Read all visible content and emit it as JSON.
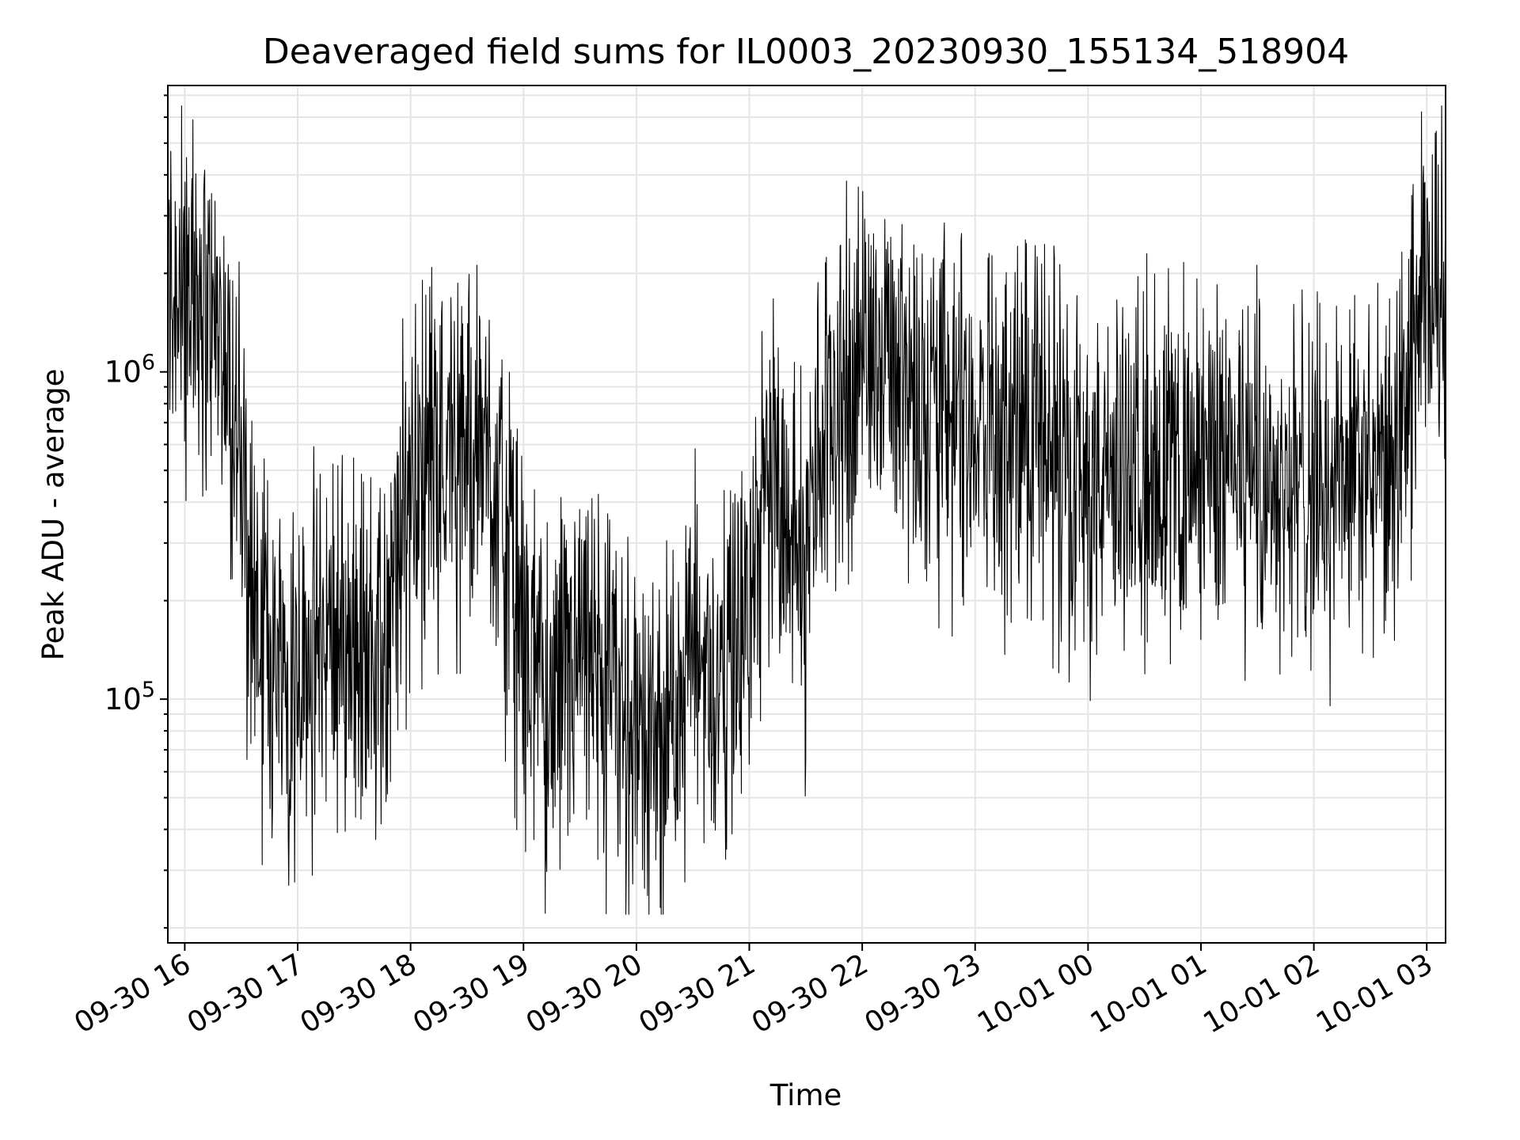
{
  "chart_data": {
    "type": "line",
    "title": "Deaveraged field sums for IL0003_20230930_155134_518904",
    "xlabel": "Time",
    "ylabel": "Peak ADU - average",
    "yscale": "log",
    "ylim": [
      18000,
      7500000
    ],
    "xlim": [
      "2023-09-30 15:51",
      "2023-10-01 03:10"
    ],
    "grid": true,
    "line_color": "#000000",
    "x_ticks": [
      "09-30 16",
      "09-30 17",
      "09-30 18",
      "09-30 19",
      "09-30 20",
      "09-30 21",
      "09-30 22",
      "09-30 23",
      "10-01 00",
      "10-01 01",
      "10-01 02",
      "10-01 03"
    ],
    "y_tick_labels": [
      {
        "base": "10",
        "exp": "5",
        "value": 100000
      },
      {
        "base": "10",
        "exp": "6",
        "value": 1000000
      }
    ],
    "series": [
      {
        "name": "",
        "x": [
          "2023-09-30 15:51",
          "2023-09-30 15:55",
          "2023-09-30 16:00",
          "2023-09-30 16:05",
          "2023-09-30 16:08",
          "2023-09-30 16:12",
          "2023-09-30 16:18",
          "2023-09-30 16:25",
          "2023-09-30 16:30",
          "2023-09-30 16:35",
          "2023-09-30 16:40",
          "2023-09-30 16:50",
          "2023-09-30 17:00",
          "2023-09-30 17:15",
          "2023-09-30 17:30",
          "2023-09-30 17:45",
          "2023-09-30 18:00",
          "2023-09-30 18:15",
          "2023-09-30 18:30",
          "2023-09-30 18:45",
          "2023-09-30 19:00",
          "2023-09-30 19:15",
          "2023-09-30 19:30",
          "2023-09-30 19:45",
          "2023-09-30 20:00",
          "2023-09-30 20:15",
          "2023-09-30 20:27",
          "2023-09-30 20:45",
          "2023-09-30 20:53",
          "2023-09-30 21:00",
          "2023-09-30 21:10",
          "2023-09-30 21:20",
          "2023-09-30 21:30",
          "2023-09-30 21:40",
          "2023-09-30 21:50",
          "2023-09-30 22:00",
          "2023-09-30 22:15",
          "2023-09-30 22:30",
          "2023-09-30 22:45",
          "2023-09-30 23:00",
          "2023-09-30 23:15",
          "2023-09-30 23:30",
          "2023-09-30 23:45",
          "2023-10-01 00:00",
          "2023-10-01 00:15",
          "2023-10-01 00:30",
          "2023-10-01 00:45",
          "2023-10-01 01:00",
          "2023-10-01 01:15",
          "2023-10-01 01:30",
          "2023-10-01 01:45",
          "2023-10-01 02:00",
          "2023-10-01 02:15",
          "2023-10-01 02:30",
          "2023-10-01 02:45",
          "2023-10-01 02:55",
          "2023-10-01 03:00",
          "2023-10-01 03:05",
          "2023-10-01 03:10"
        ],
        "y": [
          1700000,
          1900000,
          2100000,
          1600000,
          2000000,
          1400000,
          1300000,
          800000,
          500000,
          250000,
          160000,
          130000,
          140000,
          150000,
          140000,
          130000,
          500000,
          600000,
          600000,
          500000,
          150000,
          90000,
          120000,
          110000,
          80000,
          70000,
          150000,
          110000,
          130000,
          200000,
          500000,
          400000,
          250000,
          700000,
          900000,
          1000000,
          1200000,
          900000,
          800000,
          700000,
          600000,
          700000,
          600000,
          500000,
          450000,
          600000,
          500000,
          500000,
          600000,
          550000,
          450000,
          450000,
          500000,
          450000,
          500000,
          1500000,
          1600000,
          1800000,
          2000000
        ]
      }
    ]
  }
}
